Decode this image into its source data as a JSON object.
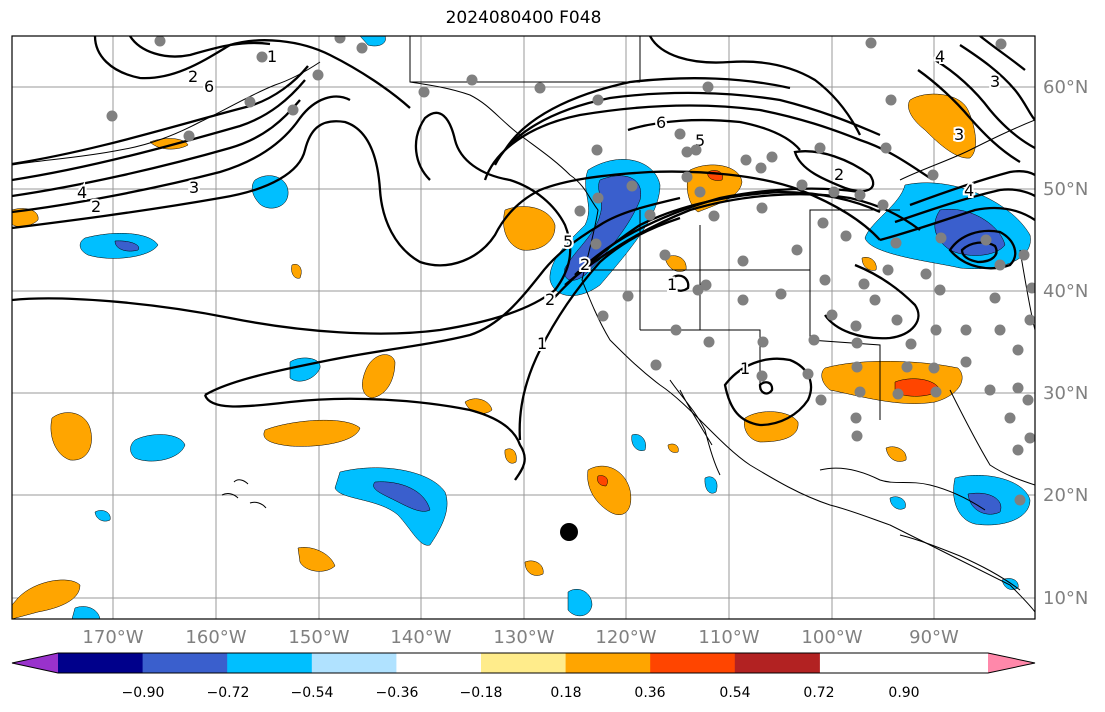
{
  "title": "2024080400 F048",
  "axes": {
    "lon_labels": [
      "170°W",
      "160°W",
      "150°W",
      "140°W",
      "130°W",
      "120°W",
      "110°W",
      "100°W",
      "90°W"
    ],
    "lat_labels": [
      "60°N",
      "50°N",
      "40°N",
      "30°N",
      "20°N",
      "10°N"
    ]
  },
  "colorbar": {
    "tick_labels": [
      "−0.90",
      "−0.72",
      "−0.54",
      "−0.36",
      "−0.18",
      "0.18",
      "0.36",
      "0.54",
      "0.72",
      "0.90"
    ],
    "colors": [
      "#9932cc",
      "#00008b",
      "#3a5fcd",
      "#00bfff",
      "#b0e2ff",
      "#ffffff",
      "#ffec8b",
      "#ffa500",
      "#ff4500",
      "#b22222",
      "#ff88aa"
    ]
  },
  "contour_labels": [
    "1",
    "2",
    "3",
    "4",
    "5",
    "6"
  ],
  "colors": {
    "grid": "#999999",
    "station": "#808080",
    "coast": "#000000",
    "contour": "#000000",
    "axis_label": "#808080"
  }
}
